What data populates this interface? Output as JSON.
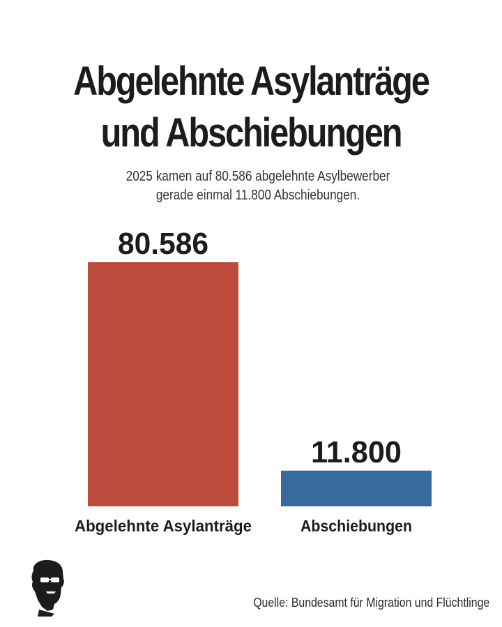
{
  "title_lines": [
    "Abgelehnte Asylanträge",
    "und Abschiebungen"
  ],
  "subtitle_lines": [
    "2025 kamen auf 80.586 abgelehnte Asylbewerber",
    "gerade einmal 11.800 Abschiebungen."
  ],
  "source": "Quelle: Bundesamt für Migration und Flüchtlinge",
  "logo_icon": "silhouette-head-sunglasses-icon",
  "colors": {
    "bar_1": "#bd4b3c",
    "bar_2": "#386a9e",
    "text": "#1c1c1c"
  },
  "chart_data": {
    "type": "bar",
    "title": "Abgelehnte Asylanträge und Abschiebungen",
    "subtitle": "2025 kamen auf 80.586 abgelehnte Asylbewerber gerade einmal 11.800 Abschiebungen.",
    "categories": [
      "Abgelehnte Asylanträge",
      "Abschiebungen"
    ],
    "values": [
      80586,
      11800
    ],
    "value_labels": [
      "80.586",
      "11.800"
    ],
    "bar_colors": [
      "#bd4b3c",
      "#386a9e"
    ],
    "xlabel": "",
    "ylabel": "",
    "ylim": [
      0,
      80586
    ],
    "grid": false,
    "legend": "none"
  }
}
